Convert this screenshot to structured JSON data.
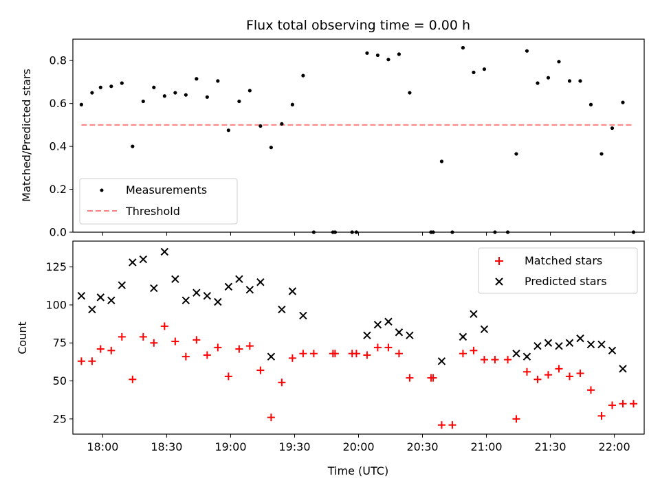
{
  "chart_data": [
    {
      "type": "scatter",
      "title": "Flux total observing time = 0.00 h",
      "xlabel": "",
      "ylabel": "Matched/Predicted stars",
      "ylim": [
        0,
        0.9
      ],
      "yticks": [
        "0.0",
        "0.2",
        "0.4",
        "0.6",
        "0.8"
      ],
      "legend_position": "lower-left",
      "threshold": {
        "name": "Threshold",
        "value": 0.5,
        "color": "#ff8080",
        "style": "dashed"
      },
      "series": [
        {
          "name": "Measurements",
          "color": "#000000",
          "marker": "dot",
          "points": [
            [
              "17:50",
              0.595
            ],
            [
              "17:55",
              0.65
            ],
            [
              "17:59",
              0.675
            ],
            [
              "18:04",
              0.68
            ],
            [
              "18:09",
              0.695
            ],
            [
              "18:14",
              0.4
            ],
            [
              "18:19",
              0.61
            ],
            [
              "18:24",
              0.675
            ],
            [
              "18:29",
              0.635
            ],
            [
              "18:34",
              0.65
            ],
            [
              "18:39",
              0.64
            ],
            [
              "18:44",
              0.715
            ],
            [
              "18:49",
              0.63
            ],
            [
              "18:54",
              0.705
            ],
            [
              "18:59",
              0.475
            ],
            [
              "19:04",
              0.61
            ],
            [
              "19:09",
              0.66
            ],
            [
              "19:14",
              0.495
            ],
            [
              "19:19",
              0.395
            ],
            [
              "19:24",
              0.505
            ],
            [
              "19:29",
              0.595
            ],
            [
              "19:34",
              0.73
            ],
            [
              "19:39",
              0.0
            ],
            [
              "19:48",
              0.0
            ],
            [
              "19:49",
              0.0
            ],
            [
              "19:57",
              0.0
            ],
            [
              "19:59",
              0.0
            ],
            [
              "20:04",
              0.835
            ],
            [
              "20:09",
              0.825
            ],
            [
              "20:14",
              0.805
            ],
            [
              "20:19",
              0.83
            ],
            [
              "20:24",
              0.65
            ],
            [
              "20:34",
              0.0
            ],
            [
              "20:35",
              0.0
            ],
            [
              "20:39",
              0.33
            ],
            [
              "20:44",
              0.0
            ],
            [
              "20:49",
              0.86
            ],
            [
              "20:54",
              0.745
            ],
            [
              "20:59",
              0.76
            ],
            [
              "21:04",
              0.0
            ],
            [
              "21:10",
              0.0
            ],
            [
              "21:14",
              0.365
            ],
            [
              "21:19",
              0.845
            ],
            [
              "21:24",
              0.695
            ],
            [
              "21:29",
              0.72
            ],
            [
              "21:34",
              0.795
            ],
            [
              "21:39",
              0.705
            ],
            [
              "21:44",
              0.705
            ],
            [
              "21:49",
              0.595
            ],
            [
              "21:54",
              0.365
            ],
            [
              "21:59",
              0.485
            ],
            [
              "22:04",
              0.605
            ],
            [
              "22:09",
              0.0
            ]
          ]
        }
      ]
    },
    {
      "type": "scatter",
      "title": "",
      "xlabel": "Time (UTC)",
      "ylabel": "Count",
      "ylim": [
        15,
        142
      ],
      "yticks": [
        "25",
        "50",
        "75",
        "100",
        "125"
      ],
      "xticks": [
        "18:00",
        "18:30",
        "19:00",
        "19:30",
        "20:00",
        "20:30",
        "21:00",
        "21:30",
        "22:00"
      ],
      "legend_position": "upper-right",
      "series": [
        {
          "name": "Matched stars",
          "color": "#ff0000",
          "marker": "plus",
          "points": [
            [
              "17:50",
              63
            ],
            [
              "17:55",
              63
            ],
            [
              "17:59",
              71
            ],
            [
              "18:04",
              70
            ],
            [
              "18:09",
              79
            ],
            [
              "18:14",
              51
            ],
            [
              "18:19",
              79
            ],
            [
              "18:24",
              75
            ],
            [
              "18:29",
              86
            ],
            [
              "18:34",
              76
            ],
            [
              "18:39",
              66
            ],
            [
              "18:44",
              77
            ],
            [
              "18:49",
              67
            ],
            [
              "18:54",
              72
            ],
            [
              "18:59",
              53
            ],
            [
              "19:04",
              71
            ],
            [
              "19:09",
              73
            ],
            [
              "19:14",
              57
            ],
            [
              "19:19",
              26
            ],
            [
              "19:24",
              49
            ],
            [
              "19:29",
              65
            ],
            [
              "19:34",
              68
            ],
            [
              "19:39",
              68
            ],
            [
              "19:48",
              68
            ],
            [
              "19:49",
              68
            ],
            [
              "19:57",
              68
            ],
            [
              "19:59",
              68
            ],
            [
              "20:04",
              67
            ],
            [
              "20:09",
              72
            ],
            [
              "20:14",
              72
            ],
            [
              "20:19",
              68
            ],
            [
              "20:24",
              52
            ],
            [
              "20:34",
              52
            ],
            [
              "20:35",
              52
            ],
            [
              "20:39",
              21
            ],
            [
              "20:44",
              21
            ],
            [
              "20:49",
              68
            ],
            [
              "20:54",
              70
            ],
            [
              "20:59",
              64
            ],
            [
              "21:04",
              64
            ],
            [
              "21:10",
              64
            ],
            [
              "21:14",
              25
            ],
            [
              "21:19",
              56
            ],
            [
              "21:24",
              51
            ],
            [
              "21:29",
              54
            ],
            [
              "21:34",
              58
            ],
            [
              "21:39",
              53
            ],
            [
              "21:44",
              55
            ],
            [
              "21:49",
              44
            ],
            [
              "21:54",
              27
            ],
            [
              "21:59",
              34
            ],
            [
              "22:04",
              35
            ],
            [
              "22:09",
              35
            ]
          ]
        },
        {
          "name": "Predicted stars",
          "color": "#000000",
          "marker": "x",
          "points": [
            [
              "17:50",
              106
            ],
            [
              "17:55",
              97
            ],
            [
              "17:59",
              105
            ],
            [
              "18:04",
              103
            ],
            [
              "18:09",
              113
            ],
            [
              "18:14",
              128
            ],
            [
              "18:19",
              130
            ],
            [
              "18:24",
              111
            ],
            [
              "18:29",
              135
            ],
            [
              "18:34",
              117
            ],
            [
              "18:39",
              103
            ],
            [
              "18:44",
              108
            ],
            [
              "18:49",
              106
            ],
            [
              "18:54",
              102
            ],
            [
              "18:59",
              112
            ],
            [
              "19:04",
              117
            ],
            [
              "19:09",
              110
            ],
            [
              "19:14",
              115
            ],
            [
              "19:19",
              66
            ],
            [
              "19:24",
              97
            ],
            [
              "19:29",
              109
            ],
            [
              "19:34",
              93
            ],
            [
              "20:04",
              80
            ],
            [
              "20:09",
              87
            ],
            [
              "20:14",
              89
            ],
            [
              "20:19",
              82
            ],
            [
              "20:24",
              80
            ],
            [
              "20:39",
              63
            ],
            [
              "20:49",
              79
            ],
            [
              "20:54",
              94
            ],
            [
              "20:59",
              84
            ],
            [
              "21:14",
              68
            ],
            [
              "21:19",
              66
            ],
            [
              "21:24",
              73
            ],
            [
              "21:29",
              75
            ],
            [
              "21:34",
              73
            ],
            [
              "21:39",
              75
            ],
            [
              "21:44",
              78
            ],
            [
              "21:49",
              74
            ],
            [
              "21:54",
              74
            ],
            [
              "21:59",
              70
            ],
            [
              "22:04",
              58
            ]
          ]
        }
      ]
    }
  ]
}
